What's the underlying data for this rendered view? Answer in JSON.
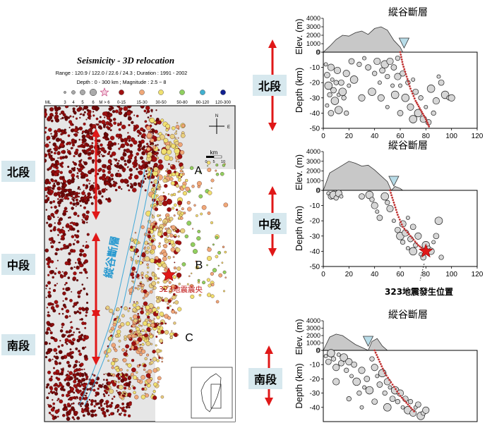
{
  "map": {
    "title": "Seismicity - 3D relocation",
    "range_line": "Range : 120.9 / 122.0 / 22.6 / 24.3 ; Duration : 1991 - 2002",
    "depth_line": "Depth : 0 - 300 km ; Magnitude : 2.5 ~ 8",
    "legend_mag_label": "ML",
    "legend_mag_values": [
      "3",
      "4",
      "5",
      "6"
    ],
    "legend_big_label": "M > 6",
    "legend_depths": [
      {
        "label": "0-15",
        "color": "#a01010"
      },
      {
        "label": "15-30",
        "color": "#f0a878"
      },
      {
        "label": "30-50",
        "color": "#f0e070"
      },
      {
        "label": "50-80",
        "color": "#90d060"
      },
      {
        "label": "80-120",
        "color": "#40b0d0"
      },
      {
        "label": "120-300",
        "color": "#102090"
      }
    ],
    "zone_labels": [
      "A",
      "B",
      "C"
    ],
    "quake_label": "323地震震央",
    "fault_label": "縱谷斷層",
    "compass": [
      "N",
      "E"
    ],
    "scale_unit": "km",
    "scale_ticks": [
      "0",
      "5",
      "10"
    ]
  },
  "segments": {
    "north": "北段",
    "middle": "中段",
    "south": "南段"
  },
  "profiles": [
    {
      "title": "縱谷斷層",
      "annotation": ""
    },
    {
      "title": "縱谷斷層",
      "annotation": "323地震發生位置"
    },
    {
      "title": "縱谷斷層",
      "annotation": ""
    }
  ],
  "colors": {
    "arrow": "#e01818",
    "star": "#e01818",
    "fault_dots": "#c03030",
    "topo_fill": "#c8c8c8",
    "triangle": "#b8dce8",
    "segment_box": "#d7e8ee"
  },
  "chart_data": [
    {
      "type": "scatter",
      "title": "縱谷斷層",
      "xlabel": "",
      "ylabel": "Depth (km)",
      "elev_label": "Elev. (m)",
      "xlim": [
        0,
        120
      ],
      "ylim": [
        -50,
        0
      ],
      "x_ticks": [
        0,
        20,
        40,
        60,
        80,
        100,
        120
      ],
      "y_ticks": [
        0,
        -10,
        -20,
        -30,
        -40,
        -50
      ],
      "elev_ticks": [
        0,
        1000,
        2000,
        3000,
        4000
      ],
      "topography": [
        [
          0,
          0
        ],
        [
          5,
          700
        ],
        [
          10,
          1500
        ],
        [
          15,
          2000
        ],
        [
          20,
          1900
        ],
        [
          25,
          2300
        ],
        [
          30,
          2500
        ],
        [
          35,
          2100
        ],
        [
          40,
          2800
        ],
        [
          45,
          3000
        ],
        [
          50,
          2600
        ],
        [
          55,
          1400
        ],
        [
          60,
          600
        ],
        [
          62,
          0
        ]
      ],
      "fault_trace": [
        [
          60,
          0
        ],
        [
          62,
          -8
        ],
        [
          65,
          -16
        ],
        [
          68,
          -24
        ],
        [
          72,
          -32
        ],
        [
          76,
          -38
        ],
        [
          80,
          -44
        ],
        [
          83,
          -50
        ]
      ],
      "triangle_x": 63,
      "events": [
        [
          2,
          -8
        ],
        [
          3,
          -15
        ],
        [
          4,
          -22
        ],
        [
          5,
          -28
        ],
        [
          6,
          -10
        ],
        [
          7,
          -18
        ],
        [
          8,
          -25
        ],
        [
          9,
          -32
        ],
        [
          10,
          -20
        ],
        [
          11,
          -12
        ],
        [
          12,
          -28
        ],
        [
          14,
          -20
        ],
        [
          15,
          -26
        ],
        [
          16,
          -30
        ],
        [
          18,
          -14
        ],
        [
          20,
          -22
        ],
        [
          22,
          -6
        ],
        [
          24,
          -18
        ],
        [
          28,
          -8
        ],
        [
          30,
          -30
        ],
        [
          32,
          -4
        ],
        [
          35,
          -10
        ],
        [
          38,
          -26
        ],
        [
          40,
          -14
        ],
        [
          42,
          -6
        ],
        [
          44,
          -20
        ],
        [
          46,
          -12
        ],
        [
          48,
          -8
        ],
        [
          50,
          -16
        ],
        [
          52,
          -6
        ],
        [
          54,
          -22
        ],
        [
          55,
          -10
        ],
        [
          56,
          -28
        ],
        [
          58,
          -4
        ],
        [
          58,
          -16
        ],
        [
          60,
          -22
        ],
        [
          62,
          -14
        ],
        [
          64,
          -30
        ],
        [
          66,
          -20
        ],
        [
          68,
          -36
        ],
        [
          70,
          -18
        ],
        [
          72,
          -26
        ],
        [
          74,
          -40
        ],
        [
          76,
          -30
        ],
        [
          78,
          -44
        ],
        [
          80,
          -36
        ],
        [
          82,
          -46
        ],
        [
          84,
          -24
        ],
        [
          86,
          -40
        ],
        [
          88,
          -32
        ],
        [
          90,
          -16
        ],
        [
          92,
          -20
        ],
        [
          95,
          -28
        ],
        [
          98,
          -30
        ],
        [
          100,
          -30
        ],
        [
          3,
          -35
        ],
        [
          6,
          -40
        ],
        [
          12,
          -38
        ],
        [
          18,
          -40
        ],
        [
          45,
          -30
        ],
        [
          50,
          -36
        ],
        [
          60,
          -40
        ],
        [
          70,
          -44
        ]
      ]
    },
    {
      "type": "scatter",
      "title": "縱谷斷層",
      "xlabel": "",
      "ylabel": "Depth (km)",
      "elev_label": "Elev. (m)",
      "xlim": [
        0,
        120
      ],
      "ylim": [
        -50,
        0
      ],
      "x_ticks": [
        0,
        20,
        40,
        60,
        80,
        100,
        120
      ],
      "y_ticks": [
        0,
        -10,
        -20,
        -30,
        -40,
        -50
      ],
      "elev_ticks": [
        0,
        1000,
        2000,
        3000,
        4000
      ],
      "topography": [
        [
          0,
          0
        ],
        [
          5,
          1800
        ],
        [
          10,
          2200
        ],
        [
          15,
          2600
        ],
        [
          20,
          3000
        ],
        [
          25,
          2800
        ],
        [
          30,
          2500
        ],
        [
          35,
          2600
        ],
        [
          40,
          2100
        ],
        [
          45,
          1500
        ],
        [
          50,
          900
        ],
        [
          53,
          0
        ],
        [
          56,
          400
        ],
        [
          60,
          200
        ],
        [
          62,
          0
        ]
      ],
      "fault_trace": [
        [
          52,
          0
        ],
        [
          55,
          -8
        ],
        [
          58,
          -16
        ],
        [
          62,
          -24
        ],
        [
          68,
          -30
        ],
        [
          74,
          -36
        ],
        [
          80,
          -40
        ]
      ],
      "triangle_x": 55,
      "star": [
        80,
        -40
      ],
      "events": [
        [
          4,
          -2
        ],
        [
          6,
          -4
        ],
        [
          8,
          -3
        ],
        [
          10,
          -5
        ],
        [
          12,
          -2
        ],
        [
          14,
          -4
        ],
        [
          30,
          -4
        ],
        [
          36,
          -3
        ],
        [
          38,
          -6
        ],
        [
          40,
          -10
        ],
        [
          42,
          -14
        ],
        [
          44,
          -18
        ],
        [
          48,
          -4
        ],
        [
          50,
          -8
        ],
        [
          52,
          -12
        ],
        [
          55,
          -20
        ],
        [
          58,
          -26
        ],
        [
          60,
          -30
        ],
        [
          62,
          -34
        ],
        [
          64,
          -28
        ],
        [
          66,
          -38
        ],
        [
          68,
          -32
        ],
        [
          70,
          -40
        ],
        [
          72,
          -36
        ],
        [
          74,
          -30
        ],
        [
          76,
          -42
        ],
        [
          78,
          -44
        ],
        [
          80,
          -36
        ],
        [
          82,
          -38
        ],
        [
          84,
          -40
        ],
        [
          86,
          -34
        ],
        [
          88,
          -30
        ],
        [
          90,
          -20
        ],
        [
          92,
          -44
        ],
        [
          62,
          -22
        ],
        [
          66,
          -18
        ],
        [
          70,
          -24
        ]
      ]
    },
    {
      "type": "scatter",
      "title": "縱谷斷層",
      "xlabel": "",
      "ylabel": "Depth (km)",
      "elev_label": "Elev. (m)",
      "xlim": [
        0,
        120
      ],
      "ylim": [
        -50,
        0
      ],
      "x_ticks": [],
      "y_ticks": [
        0,
        -10,
        -20,
        -30,
        -40
      ],
      "elev_ticks": [
        0,
        1000,
        2000,
        3000,
        4000
      ],
      "topography": [
        [
          0,
          0
        ],
        [
          5,
          1800
        ],
        [
          10,
          2200
        ],
        [
          15,
          2000
        ],
        [
          20,
          1400
        ],
        [
          25,
          800
        ],
        [
          30,
          400
        ],
        [
          35,
          0
        ],
        [
          38,
          1200
        ],
        [
          42,
          1600
        ],
        [
          46,
          600
        ],
        [
          50,
          0
        ]
      ],
      "fault_trace": [
        [
          40,
          0
        ],
        [
          44,
          -8
        ],
        [
          48,
          -16
        ],
        [
          54,
          -24
        ],
        [
          60,
          -32
        ],
        [
          66,
          -38
        ],
        [
          72,
          -44
        ]
      ],
      "triangle_x": 35,
      "events": [
        [
          2,
          -4
        ],
        [
          4,
          -8
        ],
        [
          6,
          -2
        ],
        [
          8,
          -6
        ],
        [
          10,
          -12
        ],
        [
          12,
          -3
        ],
        [
          14,
          -9
        ],
        [
          16,
          -5
        ],
        [
          18,
          -14
        ],
        [
          20,
          -8
        ],
        [
          22,
          -18
        ],
        [
          24,
          -10
        ],
        [
          26,
          -22
        ],
        [
          28,
          -30
        ],
        [
          30,
          -14
        ],
        [
          32,
          -26
        ],
        [
          34,
          -20
        ],
        [
          36,
          -28
        ],
        [
          38,
          -6
        ],
        [
          40,
          -12
        ],
        [
          42,
          -18
        ],
        [
          44,
          -24
        ],
        [
          46,
          -16
        ],
        [
          48,
          -30
        ],
        [
          50,
          -22
        ],
        [
          52,
          -26
        ],
        [
          54,
          -34
        ],
        [
          56,
          -28
        ],
        [
          58,
          -36
        ],
        [
          60,
          -30
        ],
        [
          62,
          -40
        ],
        [
          64,
          -34
        ],
        [
          66,
          -42
        ],
        [
          68,
          -36
        ],
        [
          70,
          -44
        ],
        [
          72,
          -40
        ],
        [
          74,
          -38
        ],
        [
          76,
          -46
        ],
        [
          78,
          -44
        ],
        [
          80,
          -42
        ],
        [
          30,
          -40
        ],
        [
          40,
          -36
        ],
        [
          50,
          -40
        ],
        [
          20,
          -34
        ],
        [
          10,
          -22
        ]
      ]
    }
  ]
}
